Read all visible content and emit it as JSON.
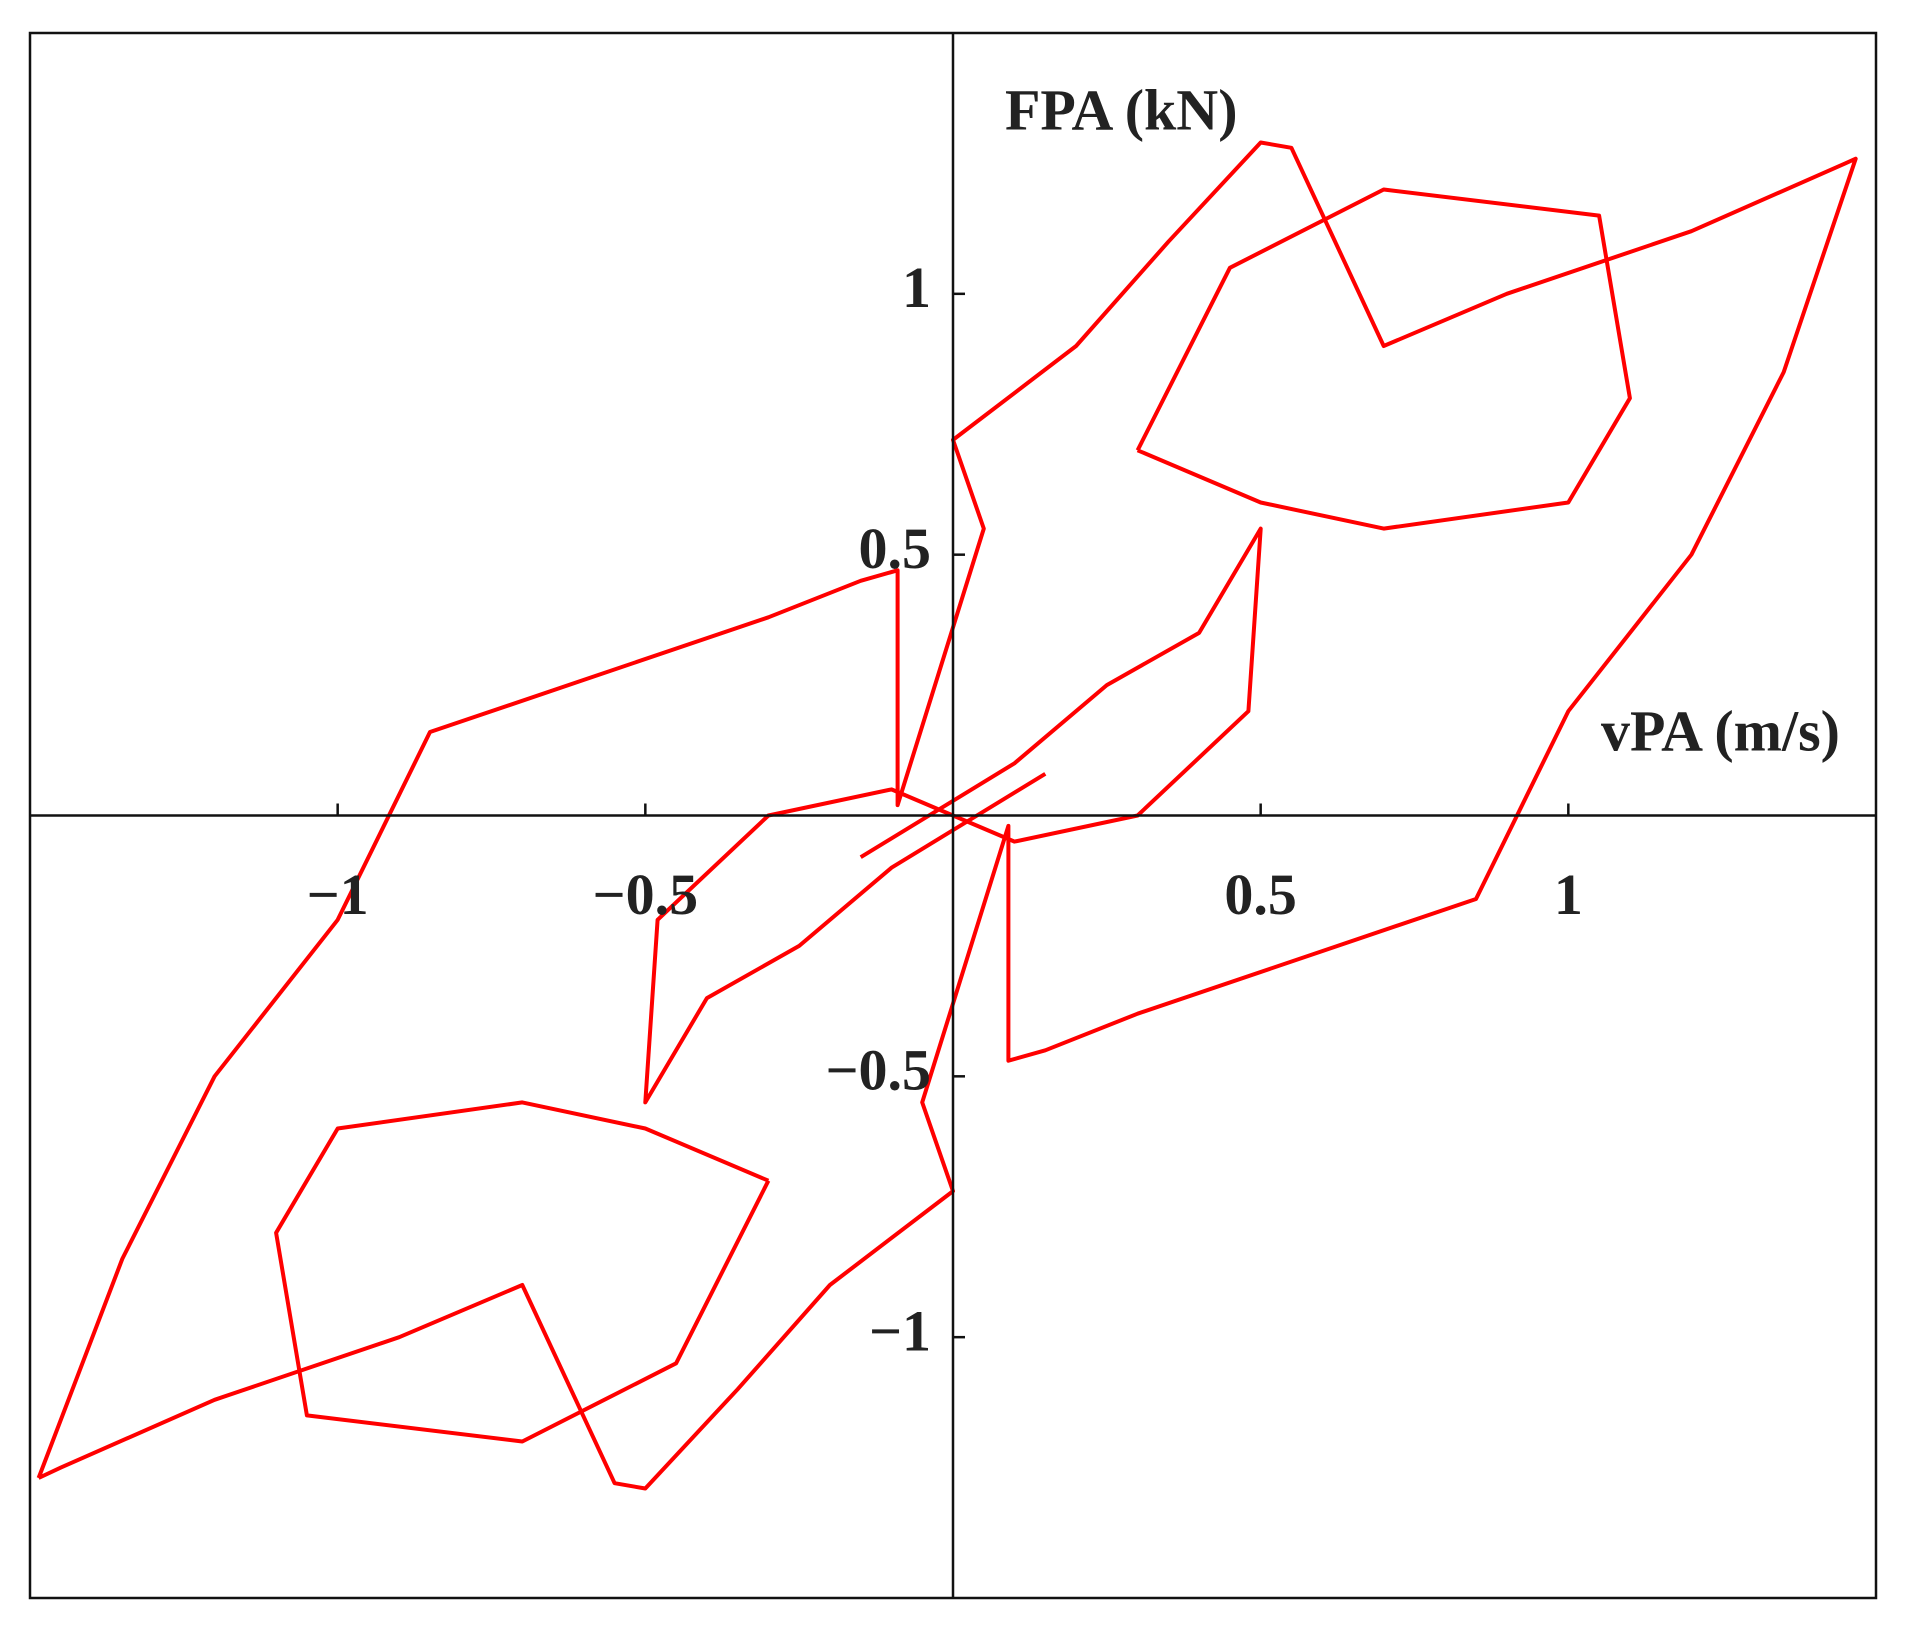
{
  "chart_data": {
    "type": "line",
    "xlabel": "vPA (m/s)",
    "ylabel": "FPA (kN)",
    "xlim": [
      -1.5,
      1.5
    ],
    "ylim": [
      -1.5,
      1.5
    ],
    "xticks": [
      {
        "value": -1,
        "label": "−1"
      },
      {
        "value": -0.5,
        "label": "−0.5"
      },
      0.5,
      1
    ],
    "yticks": [
      {
        "value": -1,
        "label": "−1"
      },
      {
        "value": -0.5,
        "label": "−0.5"
      },
      0.5,
      1
    ],
    "grid": false,
    "series": [
      {
        "color": "#ff0000",
        "x": [
          -1.486,
          -1.35,
          -1.2,
          -1.0,
          -0.85,
          -0.6,
          -0.3,
          -0.15,
          -0.09,
          -0.09,
          0.05,
          0.0,
          0.2,
          0.35,
          0.5,
          0.55,
          0.7,
          0.9,
          1.2,
          1.45,
          1.467,
          1.35,
          1.2,
          1.0,
          0.85,
          0.6,
          0.3,
          0.15,
          0.09,
          0.09,
          -0.05,
          0.0,
          -0.2,
          -0.35,
          -0.5,
          -0.55,
          -0.7,
          -0.9,
          -1.2,
          -1.45,
          -1.486
        ],
        "values": [
          -1.27,
          -0.85,
          -0.5,
          -0.2,
          0.16,
          0.26,
          0.38,
          0.45,
          0.47,
          0.02,
          0.55,
          0.72,
          0.9,
          1.1,
          1.29,
          1.28,
          0.9,
          1.0,
          1.12,
          1.25,
          1.259,
          0.85,
          0.5,
          0.2,
          -0.16,
          -0.26,
          -0.38,
          -0.45,
          -0.47,
          -0.02,
          -0.55,
          -0.72,
          -0.9,
          -1.1,
          -1.29,
          -1.28,
          -0.9,
          -1.0,
          -1.12,
          -1.25,
          -1.27
        ]
      },
      {
        "color": "#ff0000",
        "x": [
          0.3,
          0.45,
          0.7,
          1.05,
          1.1,
          1.0,
          0.7,
          0.5,
          0.3,
          null,
          -0.3,
          -0.45,
          -0.7,
          -1.05,
          -1.1,
          -1.0,
          -0.7,
          -0.5,
          -0.3
        ],
        "values": [
          0.7,
          1.05,
          1.2,
          1.15,
          0.8,
          0.6,
          0.55,
          0.6,
          0.7,
          null,
          -0.7,
          -1.05,
          -1.2,
          -1.15,
          -0.8,
          -0.6,
          -0.55,
          -0.6,
          -0.7
        ]
      },
      {
        "color": "#ff0000",
        "x": [
          -0.15,
          0.1,
          0.25,
          0.4,
          0.5,
          0.48,
          0.3,
          0.1,
          -0.1,
          -0.3,
          -0.48,
          -0.5,
          -0.4,
          -0.25,
          -0.1,
          0.15
        ],
        "values": [
          -0.08,
          0.1,
          0.25,
          0.35,
          0.55,
          0.2,
          0.0,
          -0.05,
          0.05,
          0.0,
          -0.2,
          -0.55,
          -0.35,
          -0.25,
          -0.1,
          0.08
        ]
      }
    ]
  }
}
